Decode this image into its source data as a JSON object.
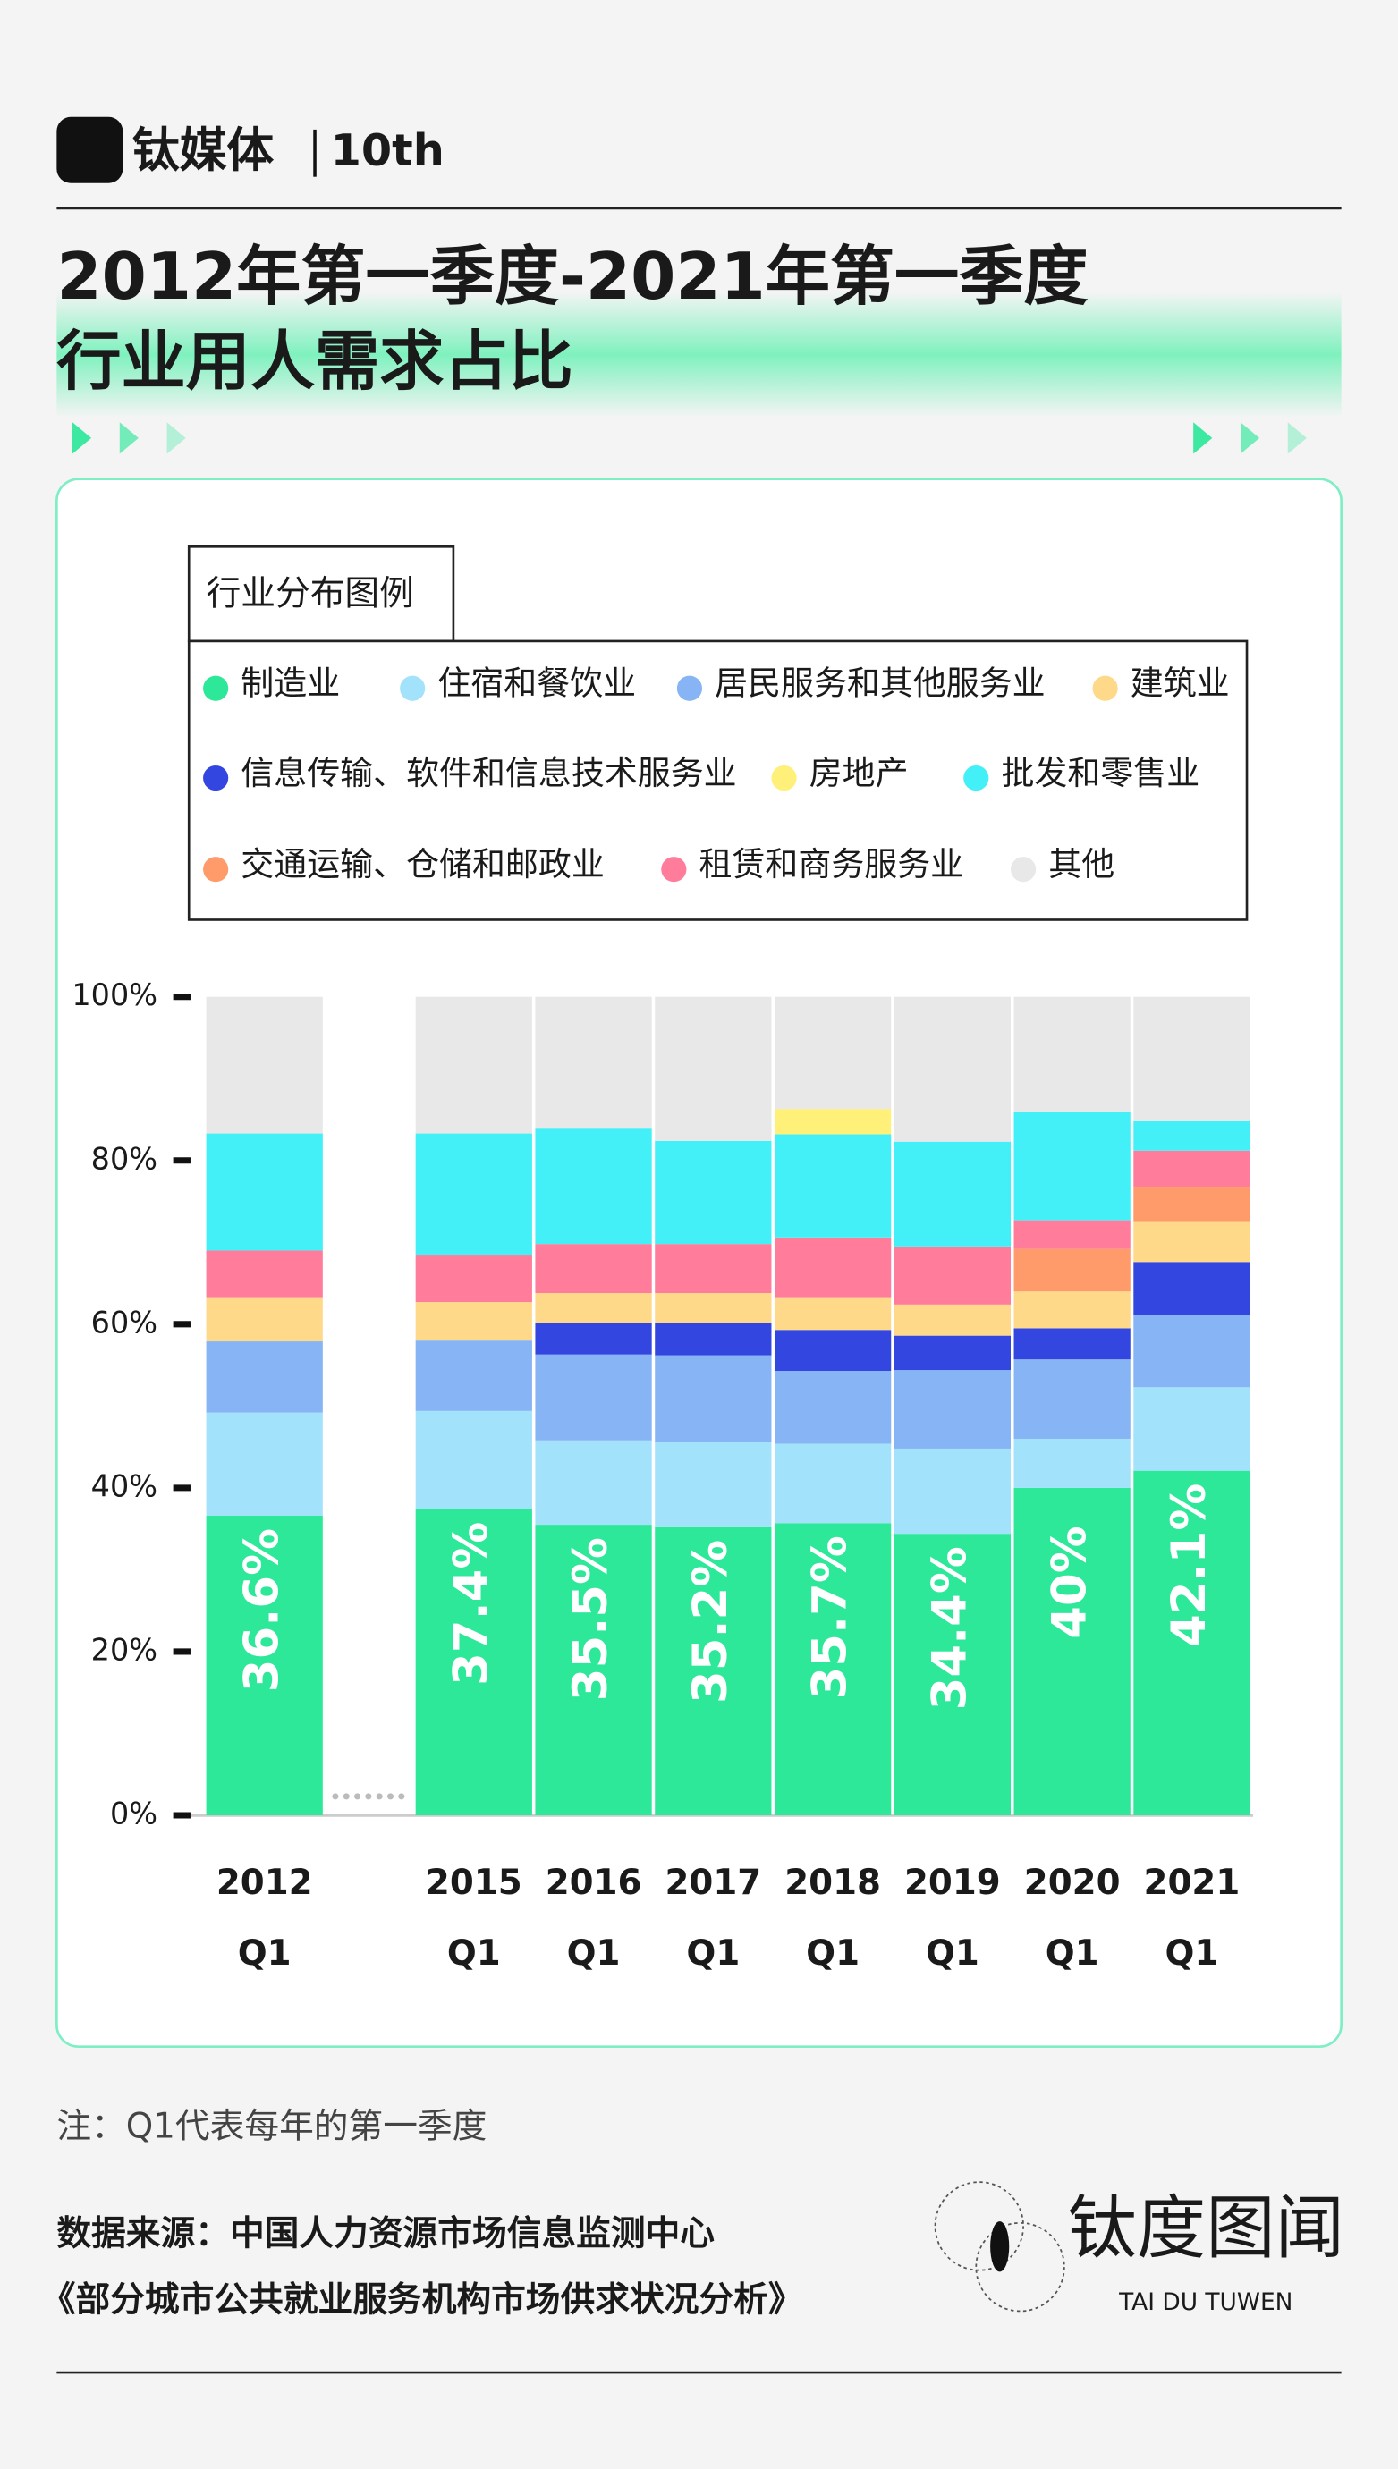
{
  "header": {
    "brand": "钛媒体",
    "badge": "10th"
  },
  "chart_data": {
    "type": "stacked_bar",
    "title": [
      "2012年第一季度-2021年第一季度",
      "行业用人需求占比"
    ],
    "legend_title": "行业分布图例",
    "categories": [
      [
        "2012",
        "Q1"
      ],
      [
        "2015",
        "Q1"
      ],
      [
        "2016",
        "Q1"
      ],
      [
        "2017",
        "Q1"
      ],
      [
        "2018",
        "Q1"
      ],
      [
        "2019",
        "Q1"
      ],
      [
        "2020",
        "Q1"
      ],
      [
        "2021",
        "Q1"
      ]
    ],
    "series": [
      {
        "name": "制造业",
        "color": "#2ee89a",
        "values": [
          36.6,
          37.4,
          35.5,
          35.2,
          35.7,
          34.4,
          40,
          42.1
        ],
        "value_labels": [
          "36.6%",
          "37.4%",
          "35.5%",
          "35.2%",
          "35.7%",
          "34.4%",
          "40%",
          "42.1%"
        ]
      },
      {
        "name": "住宿和餐饮业",
        "color": "#a3e2fb",
        "values": [
          12.6,
          12.0,
          10.3,
          10.4,
          9.7,
          10.4,
          6.0,
          10.2
        ]
      },
      {
        "name": "居民服务和其他服务业",
        "color": "#86b4f5",
        "values": [
          8.7,
          8.6,
          10.5,
          10.6,
          8.9,
          9.6,
          9.7,
          8.8
        ]
      },
      {
        "name": "建筑业",
        "color": "#ffd98a",
        "values": [
          5.4,
          4.7,
          3.6,
          3.6,
          4.0,
          3.8,
          4.5,
          5.0
        ]
      },
      {
        "name": "信息传输、软件和信息技术服务业",
        "color": "#3446e0",
        "values": [
          0,
          0,
          3.9,
          4.0,
          5.0,
          4.2,
          3.8,
          6.5
        ]
      },
      {
        "name": "房地产",
        "color": "#fff07a",
        "values": [
          0,
          0,
          0,
          0,
          3.1,
          0,
          0,
          0
        ]
      },
      {
        "name": "批发和零售业",
        "color": "#44f0f8",
        "values": [
          14.3,
          14.8,
          14.2,
          12.6,
          12.6,
          12.8,
          13.3,
          3.6
        ]
      },
      {
        "name": "交通运输、仓储和邮政业",
        "color": "#ff9a6a",
        "values": [
          0,
          0,
          0,
          0,
          0,
          0,
          5.2,
          4.2
        ]
      },
      {
        "name": "租赁和商务服务业",
        "color": "#ff7d9a",
        "values": [
          5.7,
          5.8,
          6.0,
          6.0,
          7.3,
          7.1,
          3.5,
          4.4
        ]
      },
      {
        "name": "其他",
        "color": "#e8e8e8",
        "values": [
          16.7,
          16.7,
          16.0,
          17.6,
          13.7,
          17.7,
          14.0,
          15.2
        ]
      }
    ],
    "ylim": [
      0,
      100
    ],
    "yticks": [
      {
        "value": 0,
        "label": "0%"
      },
      {
        "value": 20,
        "label": "20%"
      },
      {
        "value": 40,
        "label": "40%"
      },
      {
        "value": 60,
        "label": "60%"
      },
      {
        "value": 80,
        "label": "80%"
      },
      {
        "value": 100,
        "label": "100%"
      }
    ]
  },
  "footer": {
    "note": "注：Q1代表每年的第一季度",
    "source": [
      "数据来源：中国人力资源市场信息监测中心",
      "《部分城市公共就业服务机构市场供求状况分析》"
    ],
    "brand": "钛度图闻",
    "brand_en": "TAI DU TUWEN"
  }
}
